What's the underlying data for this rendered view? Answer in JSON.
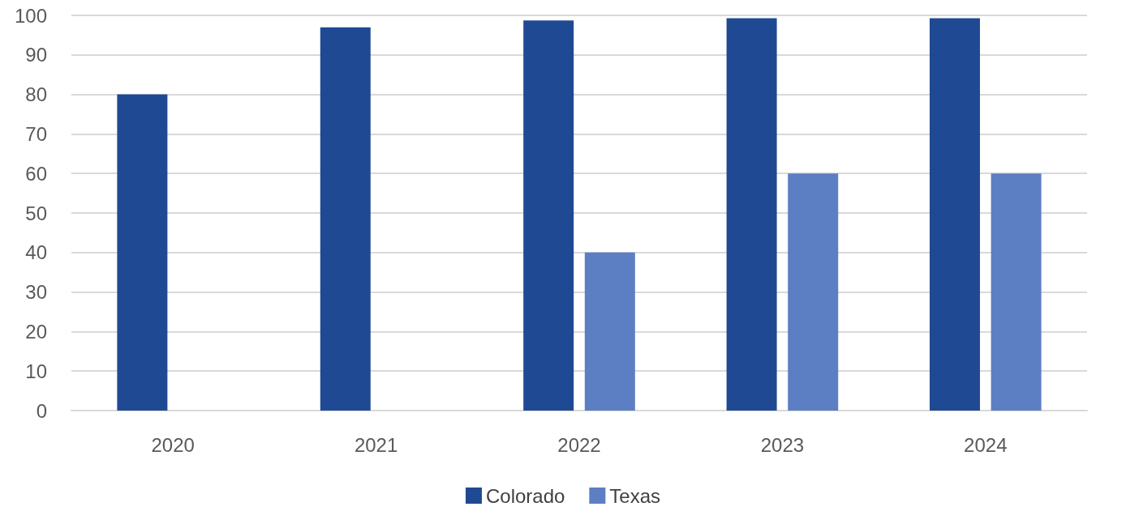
{
  "chart_data": {
    "type": "bar",
    "categories": [
      "2020",
      "2021",
      "2022",
      "2023",
      "2024"
    ],
    "series": [
      {
        "name": "Colorado",
        "color": "#1f4a93",
        "values": [
          80,
          97,
          98.7,
          99.3,
          99.3
        ]
      },
      {
        "name": "Texas",
        "color": "#5b7fc2",
        "values": [
          null,
          null,
          40,
          60,
          60
        ]
      }
    ],
    "ylim": [
      0,
      100
    ],
    "yticks": [
      0,
      10,
      20,
      30,
      40,
      50,
      60,
      70,
      80,
      90,
      100
    ],
    "grid": "y",
    "legend": "bottom"
  }
}
